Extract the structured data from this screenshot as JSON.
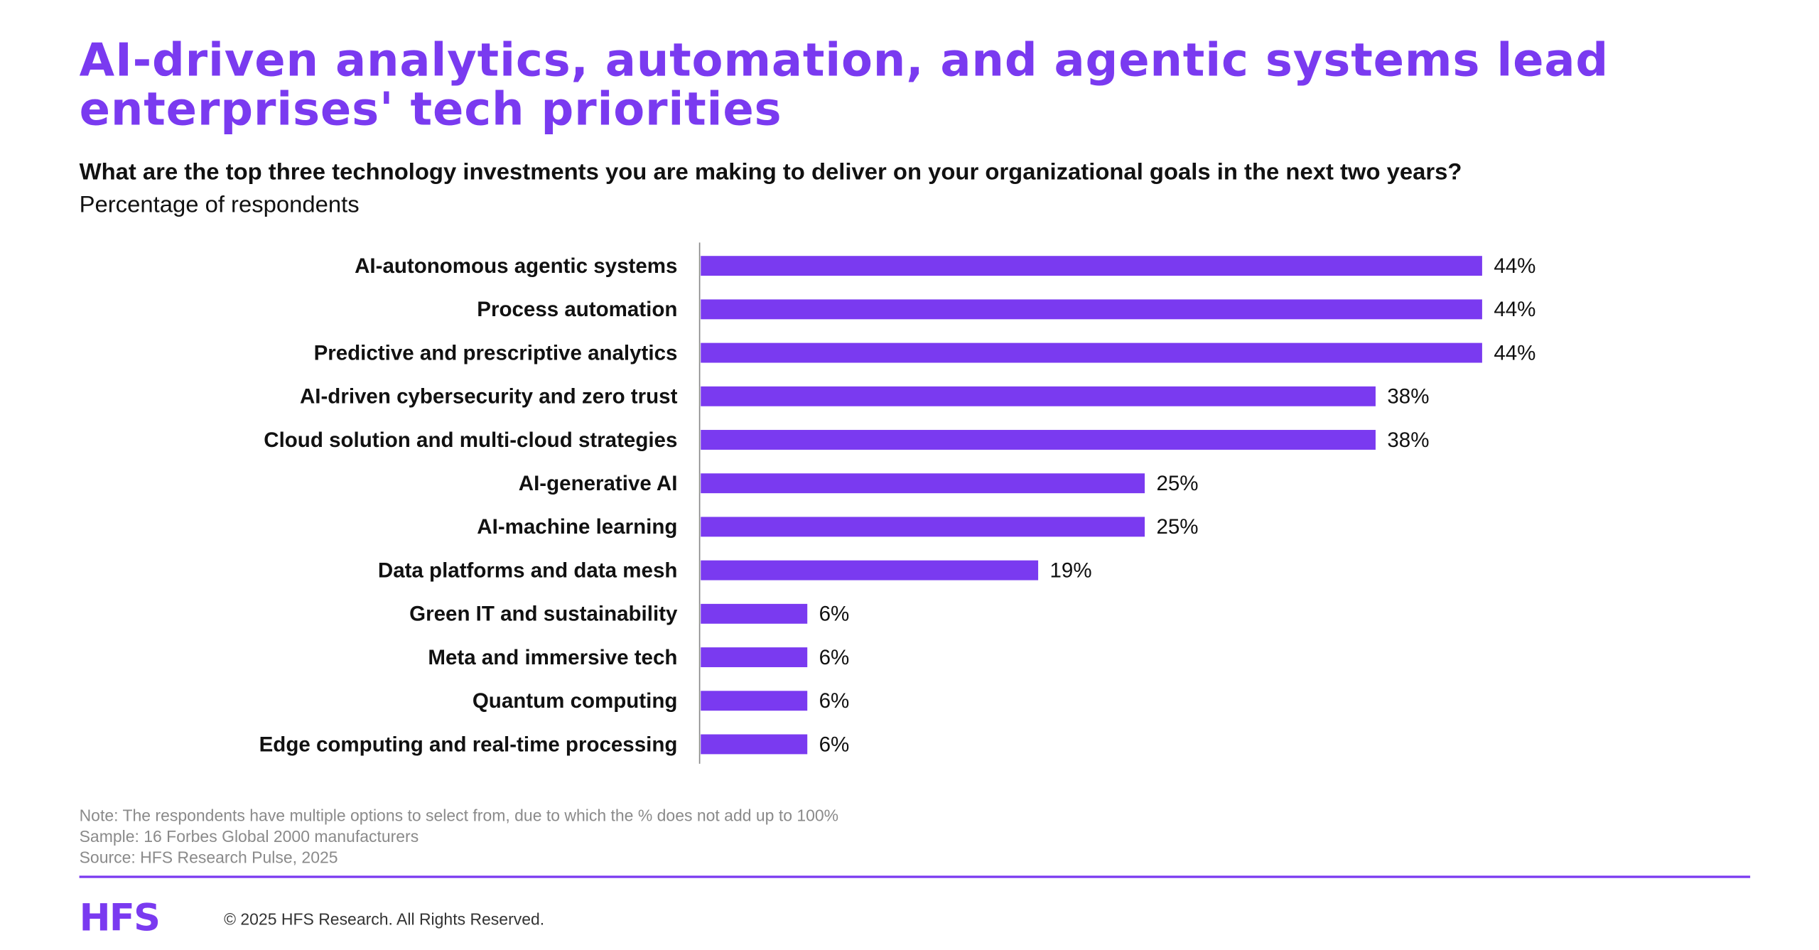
{
  "title": "AI-driven analytics, automation, and agentic systems lead enterprises' tech priorities",
  "question": "What are the top three technology investments you are making to deliver on your organizational goals in the next two years?",
  "subtitle": "Percentage of respondents",
  "chart_data": {
    "type": "bar",
    "orientation": "horizontal",
    "categories": [
      "AI-autonomous agentic systems",
      "Process automation",
      "Predictive and prescriptive analytics",
      "AI-driven cybersecurity and zero trust",
      "Cloud solution and multi-cloud strategies",
      "AI-generative AI",
      "AI-machine learning",
      "Data platforms and data mesh",
      "Green IT and sustainability",
      "Meta and immersive tech",
      "Quantum computing",
      "Edge computing and real-time processing"
    ],
    "values": [
      44,
      44,
      44,
      38,
      38,
      25,
      25,
      19,
      6,
      6,
      6,
      6
    ],
    "value_labels": [
      "44%",
      "44%",
      "44%",
      "38%",
      "38%",
      "25%",
      "25%",
      "19%",
      "6%",
      "6%",
      "6%",
      "6%"
    ],
    "xlim": [
      0,
      50
    ],
    "grid": false,
    "bar_color": "#7a3af0"
  },
  "notes": [
    "Note: The respondents have multiple options to select from, due to which the % does not add up to 100%",
    "Sample: 16 Forbes Global 2000 manufacturers",
    "Source: HFS Research Pulse, 2025"
  ],
  "footer": {
    "logo": "HFS",
    "copyright": "© 2025 HFS Research. All Rights Reserved."
  }
}
